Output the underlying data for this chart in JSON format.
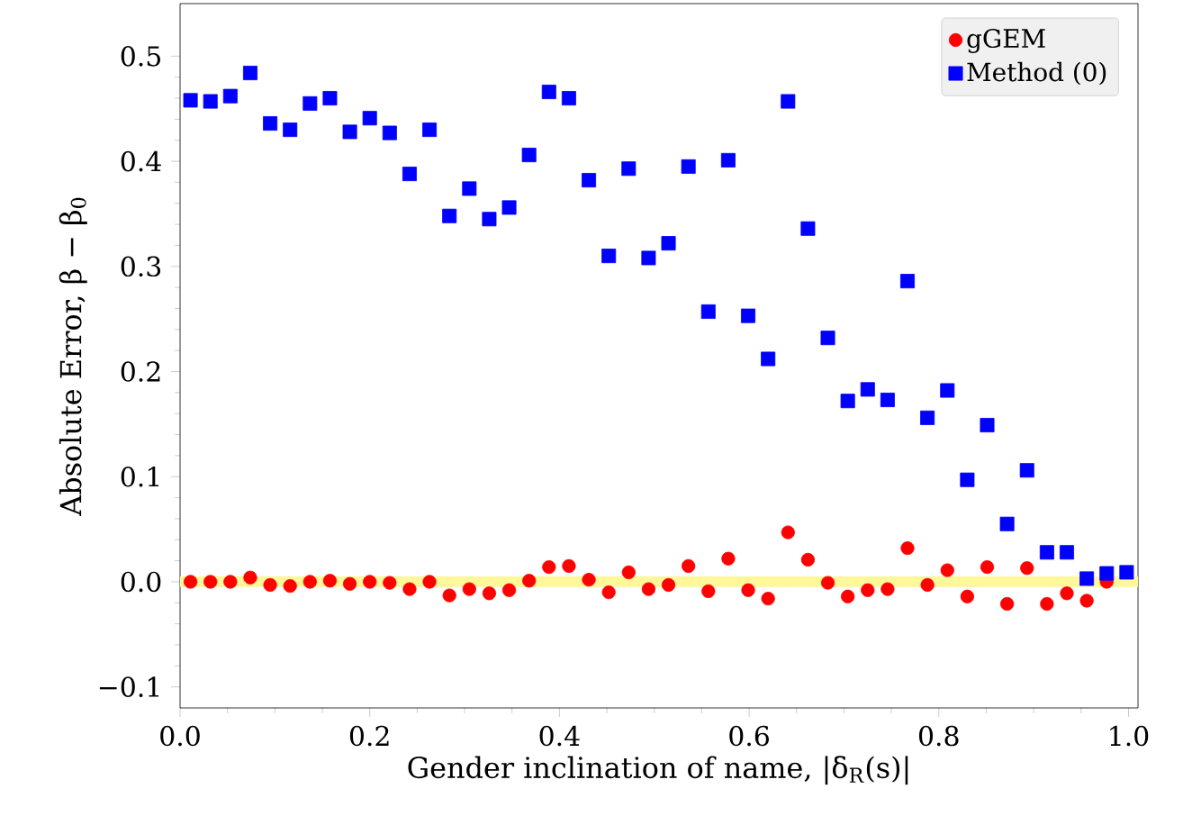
{
  "chart_data": {
    "type": "scatter",
    "xlabel": "Gender inclination of name, |δ$_{R}$(s)|",
    "ylabel": "Absolute Error, β − β$_{0}$",
    "x": [
      0.011,
      0.032,
      0.053,
      0.074,
      0.095,
      0.116,
      0.137,
      0.158,
      0.179,
      0.2,
      0.221,
      0.242,
      0.263,
      0.284,
      0.305,
      0.326,
      0.347,
      0.368,
      0.389,
      0.41,
      0.431,
      0.452,
      0.473,
      0.494,
      0.515,
      0.536,
      0.557,
      0.578,
      0.599,
      0.62,
      0.641,
      0.662,
      0.683,
      0.704,
      0.725,
      0.746,
      0.767,
      0.788,
      0.809,
      0.83,
      0.851,
      0.872,
      0.893,
      0.914,
      0.935,
      0.956,
      0.977,
      0.998
    ],
    "series": [
      {
        "name": "gGEM",
        "color": "#ff0000",
        "marker": "circle",
        "values": [
          0,
          0,
          0,
          0.004,
          -0.003,
          -0.004,
          0,
          0.001,
          -0.002,
          0,
          -0.001,
          -0.007,
          0,
          -0.013,
          -0.007,
          -0.011,
          -0.008,
          0.001,
          0.014,
          0.015,
          0.002,
          -0.01,
          0.009,
          -0.007,
          -0.003,
          0.015,
          -0.009,
          0.022,
          -0.008,
          -0.016,
          0.047,
          0.021,
          -0.001,
          -0.014,
          -0.008,
          -0.007,
          0.032,
          -0.003,
          0.011,
          -0.014,
          0.014,
          -0.021,
          0.013,
          -0.021,
          -0.011,
          -0.018,
          0,
          null
        ]
      },
      {
        "name": "Method (0)",
        "color": "#0000ff",
        "marker": "square",
        "values": [
          0.458,
          0.457,
          0.462,
          0.484,
          0.436,
          0.43,
          0.455,
          0.46,
          0.428,
          0.441,
          0.427,
          0.388,
          0.43,
          0.348,
          0.374,
          0.345,
          0.356,
          0.406,
          0.466,
          0.46,
          0.382,
          0.31,
          0.393,
          0.308,
          0.322,
          0.395,
          0.257,
          0.401,
          0.253,
          0.212,
          0.457,
          0.336,
          0.232,
          0.172,
          0.183,
          0.173,
          0.286,
          0.156,
          0.182,
          0.097,
          0.149,
          0.055,
          0.106,
          0.028,
          0.028,
          0.003,
          0.008,
          0.009
        ]
      }
    ],
    "bands": [
      {
        "axis": "y",
        "from": -0.005,
        "to": 0.005,
        "color": "#fff799"
      }
    ],
    "xlim": [
      0,
      1.01
    ],
    "ylim": [
      -0.12,
      0.55
    ],
    "xticks": [
      {
        "value": 0,
        "label": "0.0"
      },
      {
        "value": 0.2,
        "label": "0.2"
      },
      {
        "value": 0.4,
        "label": "0.4"
      },
      {
        "value": 0.6,
        "label": "0.6"
      },
      {
        "value": 0.8,
        "label": "0.8"
      },
      {
        "value": 1.0,
        "label": "1.0"
      }
    ],
    "yticks": [
      {
        "value": -0.1,
        "label": "−0.1"
      },
      {
        "value": 0,
        "label": "0.0"
      },
      {
        "value": 0.1,
        "label": "0.1"
      },
      {
        "value": 0.2,
        "label": "0.2"
      },
      {
        "value": 0.3,
        "label": "0.3"
      },
      {
        "value": 0.4,
        "label": "0.4"
      },
      {
        "value": 0.5,
        "label": "0.5"
      }
    ],
    "legend": "top right",
    "grid": false
  }
}
